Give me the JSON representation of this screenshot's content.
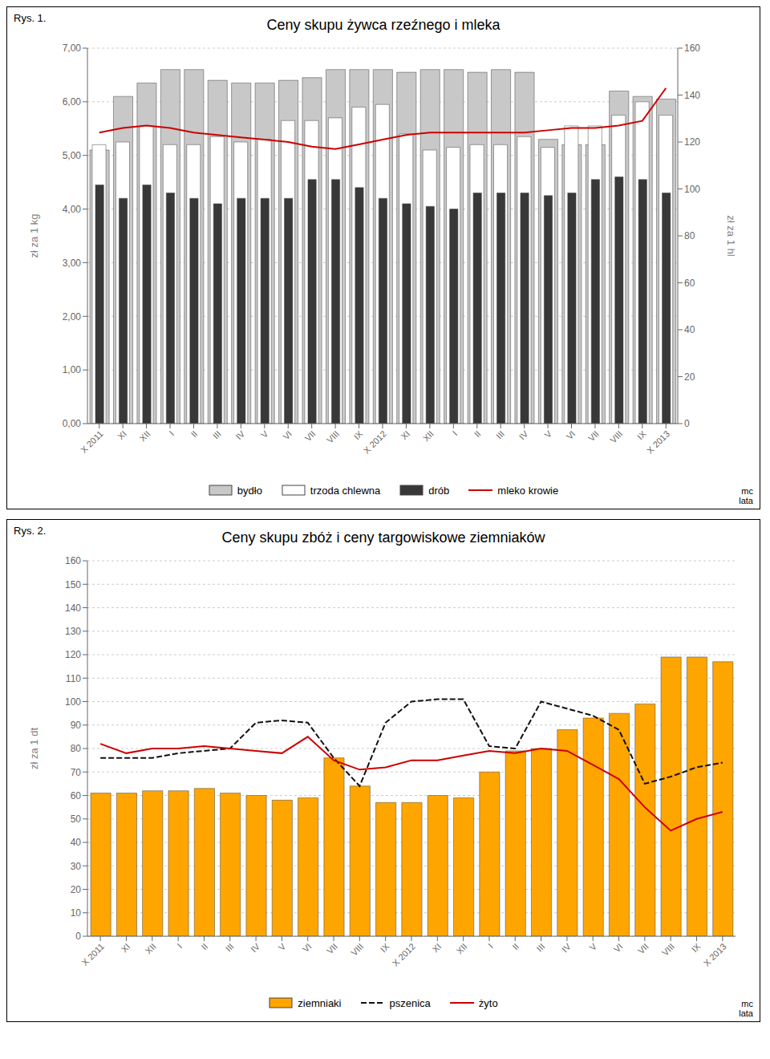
{
  "chart_data": [
    {
      "type": "bar",
      "title": "Ceny skupu żywca rzeźnego i mleka",
      "ylabel": "zł za 1 kg",
      "y2label": "zł za 1 hl",
      "annotations": [
        "Rys. 1.",
        "mc\nlata"
      ],
      "categories": [
        "X 2011",
        "XI",
        "XII",
        "I",
        "II",
        "III",
        "IV",
        "V",
        "VI",
        "VII",
        "VIII",
        "IX",
        "X 2012",
        "XI",
        "XII",
        "I",
        "II",
        "III",
        "IV",
        "V",
        "VI",
        "VII",
        "VIII",
        "IX",
        "X 2013"
      ],
      "series": [
        {
          "name": "bydło",
          "type": "bar",
          "color": "#c8c8c8",
          "values": [
            5.1,
            6.1,
            6.35,
            6.6,
            6.6,
            6.4,
            6.35,
            6.35,
            6.4,
            6.45,
            6.6,
            6.6,
            6.6,
            6.55,
            6.6,
            6.6,
            6.55,
            6.6,
            6.55,
            5.3,
            5.2,
            5.2,
            6.2,
            6.1,
            6.05
          ]
        },
        {
          "name": "trzoda chlewna",
          "type": "bar",
          "color": "#ffffff",
          "values": [
            5.2,
            5.25,
            5.55,
            5.2,
            5.2,
            5.35,
            5.25,
            5.3,
            5.65,
            5.65,
            5.7,
            5.9,
            5.95,
            5.4,
            5.1,
            5.15,
            5.2,
            5.2,
            5.35,
            5.15,
            5.55,
            5.55,
            5.75,
            6.0,
            5.75
          ]
        },
        {
          "name": "drób",
          "type": "bar",
          "color": "#383838",
          "values": [
            4.45,
            4.2,
            4.45,
            4.3,
            4.2,
            4.1,
            4.2,
            4.2,
            4.2,
            4.55,
            4.55,
            4.4,
            4.2,
            4.1,
            4.05,
            4.0,
            4.3,
            4.3,
            4.3,
            4.25,
            4.3,
            4.55,
            4.6,
            4.55,
            4.3
          ]
        },
        {
          "name": "mleko krowie",
          "type": "line",
          "axis": "y2",
          "color": "#cc0000",
          "line_style": "solid",
          "values": [
            124,
            126,
            127,
            126,
            124,
            123,
            122,
            121,
            120,
            118,
            117,
            119,
            121,
            123,
            124,
            124,
            124,
            124,
            124,
            125,
            126,
            126,
            127,
            129,
            143
          ]
        }
      ],
      "ylim": [
        0,
        7
      ],
      "yticks": [
        {
          "value": 0,
          "label": "0,00"
        },
        {
          "value": 1,
          "label": "1,00"
        },
        {
          "value": 2,
          "label": "2,00"
        },
        {
          "value": 3,
          "label": "3,00"
        },
        {
          "value": 4,
          "label": "4,00"
        },
        {
          "value": 5,
          "label": "5,00"
        },
        {
          "value": 6,
          "label": "6,00"
        },
        {
          "value": 7,
          "label": "7,00"
        }
      ],
      "y2lim": [
        0,
        160
      ],
      "y2ticks": [
        0,
        20,
        40,
        60,
        80,
        100,
        120,
        140,
        160
      ],
      "grid": true,
      "legend": "bottom"
    },
    {
      "type": "bar",
      "title": "Ceny skupu zbóż i ceny targowiskowe ziemniaków",
      "ylabel": "zł za 1 dt",
      "annotations": [
        "Rys. 2.",
        "mc\nlata"
      ],
      "categories": [
        "X 2011",
        "XI",
        "XII",
        "I",
        "II",
        "III",
        "IV",
        "V",
        "VI",
        "VII",
        "VIII",
        "IX",
        "X 2012",
        "XI",
        "XII",
        "I",
        "II",
        "III",
        "IV",
        "V",
        "VI",
        "VII",
        "VIII",
        "IX",
        "X 2013"
      ],
      "series": [
        {
          "name": "ziemniaki",
          "type": "bar",
          "color": "#FFA500",
          "values": [
            61,
            61,
            62,
            62,
            63,
            61,
            60,
            58,
            59,
            76,
            64,
            57,
            57,
            60,
            59,
            70,
            79,
            80,
            88,
            93,
            95,
            99,
            119,
            119,
            117
          ]
        },
        {
          "name": "pszenica",
          "type": "line",
          "color": "#111111",
          "line_style": "dashed",
          "values": [
            76,
            76,
            76,
            78,
            79,
            80,
            91,
            92,
            91,
            76,
            64,
            91,
            100,
            101,
            101,
            81,
            80,
            100,
            97,
            94,
            88,
            65,
            68,
            72,
            74
          ]
        },
        {
          "name": "żyto",
          "type": "line",
          "color": "#cc0000",
          "line_style": "solid",
          "values": [
            82,
            78,
            80,
            80,
            81,
            80,
            79,
            78,
            85,
            75,
            71,
            72,
            75,
            75,
            77,
            79,
            78,
            80,
            79,
            73,
            67,
            55,
            45,
            50,
            53
          ]
        }
      ],
      "ylim": [
        0,
        160
      ],
      "yticks": [
        0,
        10,
        20,
        30,
        40,
        50,
        60,
        70,
        80,
        90,
        100,
        110,
        120,
        130,
        140,
        150,
        160
      ],
      "grid": true,
      "legend": "bottom"
    }
  ]
}
